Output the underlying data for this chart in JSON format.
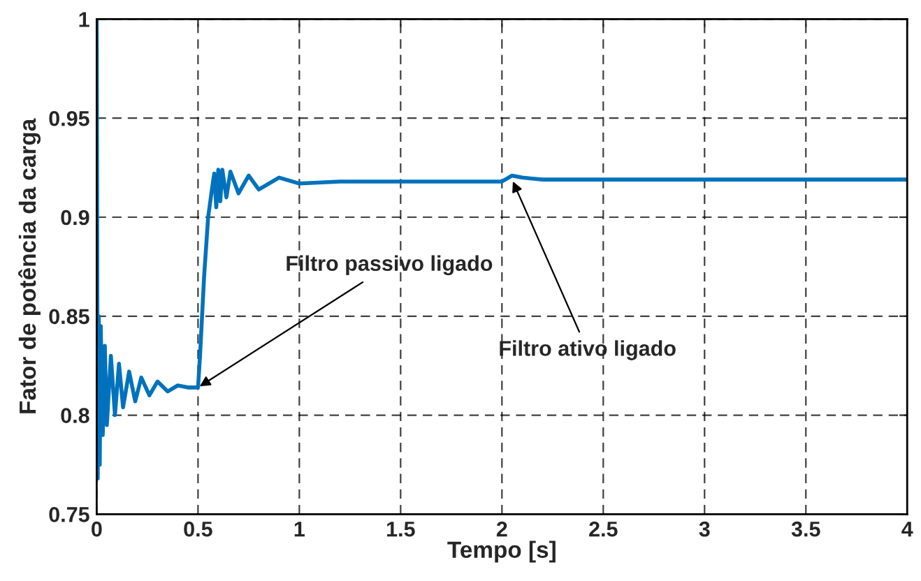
{
  "chart_data": {
    "type": "line",
    "xlabel": "Tempo [s]",
    "ylabel": "Fator de potência da carga",
    "x": [
      0,
      0.005,
      0.01,
      0.015,
      0.02,
      0.03,
      0.04,
      0.05,
      0.07,
      0.09,
      0.11,
      0.13,
      0.16,
      0.19,
      0.22,
      0.26,
      0.3,
      0.35,
      0.4,
      0.45,
      0.5,
      0.51,
      0.53,
      0.55,
      0.57,
      0.58,
      0.59,
      0.6,
      0.61,
      0.62,
      0.64,
      0.66,
      0.7,
      0.75,
      0.8,
      0.9,
      1.0,
      1.2,
      1.5,
      2.0,
      2.05,
      2.1,
      2.2,
      4.0
    ],
    "series": [
      {
        "color": "#0072bd",
        "values": [
          1,
          0.768,
          0.85,
          0.775,
          0.845,
          0.79,
          0.835,
          0.795,
          0.83,
          0.8,
          0.826,
          0.804,
          0.822,
          0.807,
          0.819,
          0.81,
          0.817,
          0.812,
          0.815,
          0.814,
          0.814,
          0.83,
          0.87,
          0.9,
          0.915,
          0.922,
          0.905,
          0.924,
          0.908,
          0.924,
          0.91,
          0.923,
          0.912,
          0.921,
          0.914,
          0.92,
          0.917,
          0.918,
          0.918,
          0.918,
          0.921,
          0.92,
          0.919,
          0.919
        ]
      }
    ],
    "xlim": [
      0,
      4
    ],
    "ylim": [
      0.75,
      1
    ],
    "xticks": [
      0,
      0.5,
      1,
      1.5,
      2,
      2.5,
      3,
      3.5,
      4
    ],
    "yticks": [
      0.75,
      0.8,
      0.85,
      0.9,
      0.95,
      1
    ],
    "grid": true,
    "line_style": "solid",
    "marker": "none",
    "annotations": [
      {
        "text": "Filtro passivo ligado",
        "x": 0.5,
        "y": 0.814
      },
      {
        "text": "Filtro ativo ligado",
        "x": 2.05,
        "y": 0.919
      }
    ]
  }
}
